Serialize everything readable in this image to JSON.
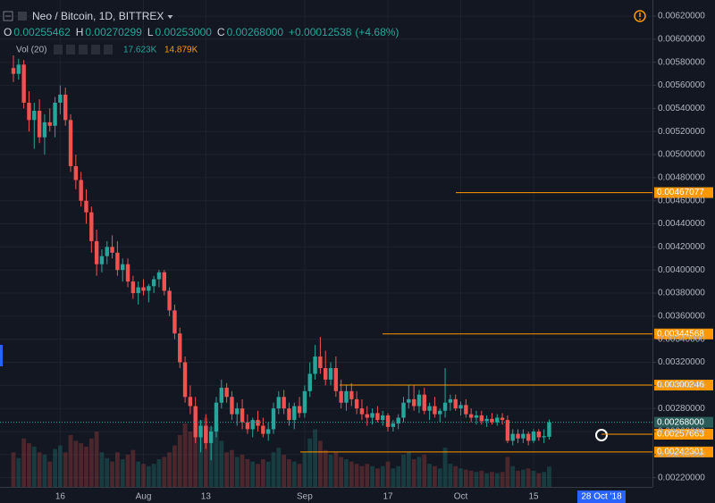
{
  "header": {
    "symbol": "Neo / Bitcoin, 1D, BITTREX",
    "ohlc": [
      {
        "key": "O",
        "value": 0.00255462,
        "label": "0.00255462"
      },
      {
        "key": "H",
        "value": 0.00270299,
        "label": "0.00270299"
      },
      {
        "key": "L",
        "value": 0.00253,
        "label": "0.00253000"
      },
      {
        "key": "C",
        "value": 0.00268,
        "label": "0.00268000"
      }
    ],
    "change": {
      "value": 0.00012538,
      "label": "+0.00012538"
    },
    "change_pct": {
      "value": 4.68,
      "label": "(+4.68%)"
    },
    "volume_indicator": "Vol (20)",
    "volume_values": [
      17623,
      14879
    ],
    "volume_value_labels": [
      "17.623K",
      "14.879K"
    ]
  },
  "chart_data": {
    "type": "candlestick",
    "up_color": "#26a69a",
    "down_color": "#ef5350",
    "grid": true,
    "categories": [
      null,
      null,
      null,
      null,
      null,
      null,
      null,
      null,
      null,
      "16",
      null,
      null,
      null,
      null,
      null,
      null,
      null,
      null,
      null,
      null,
      null,
      null,
      null,
      null,
      null,
      "Aug",
      null,
      null,
      null,
      null,
      null,
      null,
      null,
      null,
      null,
      null,
      null,
      "13",
      null,
      null,
      null,
      null,
      null,
      null,
      null,
      null,
      null,
      null,
      null,
      null,
      null,
      null,
      null,
      null,
      null,
      null,
      "Sep",
      null,
      null,
      null,
      null,
      null,
      null,
      null,
      null,
      null,
      null,
      null,
      null,
      null,
      null,
      null,
      "17",
      null,
      null,
      null,
      null,
      null,
      null,
      null,
      null,
      null,
      null,
      null,
      null,
      null,
      "Oct",
      null,
      null,
      null,
      null,
      null,
      null,
      null,
      null,
      null,
      null,
      null,
      null,
      null,
      "15",
      null,
      null,
      null
    ],
    "ohlc": [
      [
        0.00575,
        0.00586,
        0.00563,
        0.0057
      ],
      [
        0.0057,
        0.00583,
        0.00565,
        0.00578
      ],
      [
        0.00578,
        0.00582,
        0.0054,
        0.00545
      ],
      [
        0.00545,
        0.00555,
        0.0052,
        0.0053
      ],
      [
        0.0053,
        0.00545,
        0.00505,
        0.00538
      ],
      [
        0.00538,
        0.00548,
        0.0051,
        0.00515
      ],
      [
        0.00515,
        0.00535,
        0.005,
        0.00528
      ],
      [
        0.00528,
        0.0054,
        0.0052,
        0.00525
      ],
      [
        0.00525,
        0.0055,
        0.00515,
        0.00545
      ],
      [
        0.00545,
        0.0056,
        0.00535,
        0.00552
      ],
      [
        0.00552,
        0.00558,
        0.00525,
        0.0053
      ],
      [
        0.0053,
        0.00535,
        0.00485,
        0.0049
      ],
      [
        0.0049,
        0.005,
        0.0047,
        0.00478
      ],
      [
        0.00478,
        0.00485,
        0.00455,
        0.0046
      ],
      [
        0.0046,
        0.0047,
        0.0044,
        0.0045
      ],
      [
        0.0045,
        0.00455,
        0.00415,
        0.00425
      ],
      [
        0.00425,
        0.00435,
        0.00395,
        0.00405
      ],
      [
        0.00405,
        0.00418,
        0.00398,
        0.00412
      ],
      [
        0.00412,
        0.00425,
        0.00405,
        0.0042
      ],
      [
        0.0042,
        0.0043,
        0.0041,
        0.00415
      ],
      [
        0.00415,
        0.00425,
        0.00395,
        0.004
      ],
      [
        0.004,
        0.0041,
        0.0039,
        0.00405
      ],
      [
        0.00405,
        0.0041,
        0.00385,
        0.0039
      ],
      [
        0.0039,
        0.00395,
        0.00375,
        0.0038
      ],
      [
        0.0038,
        0.0039,
        0.0037,
        0.00385
      ],
      [
        0.00385,
        0.00392,
        0.00378,
        0.00382
      ],
      [
        0.00382,
        0.00388,
        0.00372,
        0.00386
      ],
      [
        0.00386,
        0.00395,
        0.0038,
        0.00392
      ],
      [
        0.00392,
        0.004,
        0.00385,
        0.00398
      ],
      [
        0.00398,
        0.004,
        0.00378,
        0.00382
      ],
      [
        0.00382,
        0.00385,
        0.0036,
        0.00365
      ],
      [
        0.00365,
        0.0037,
        0.0034,
        0.00345
      ],
      [
        0.00345,
        0.0035,
        0.00315,
        0.0032
      ],
      [
        0.0032,
        0.00325,
        0.00285,
        0.0029
      ],
      [
        0.0029,
        0.003,
        0.00275,
        0.00282
      ],
      [
        0.00282,
        0.0029,
        0.0025,
        0.00255
      ],
      [
        0.00255,
        0.0027,
        0.00242,
        0.00265
      ],
      [
        0.00265,
        0.00275,
        0.00245,
        0.0025
      ],
      [
        0.0025,
        0.00265,
        0.00235,
        0.0026
      ],
      [
        0.0026,
        0.0029,
        0.00255,
        0.00285
      ],
      [
        0.00285,
        0.00305,
        0.0028,
        0.00298
      ],
      [
        0.00298,
        0.00302,
        0.00285,
        0.0029
      ],
      [
        0.0029,
        0.00295,
        0.0027,
        0.00275
      ],
      [
        0.00275,
        0.00285,
        0.00265,
        0.0028
      ],
      [
        0.0028,
        0.00288,
        0.00262,
        0.00268
      ],
      [
        0.00268,
        0.00275,
        0.00258,
        0.00262
      ],
      [
        0.00262,
        0.00272,
        0.00255,
        0.0027
      ],
      [
        0.0027,
        0.00278,
        0.0026,
        0.00265
      ],
      [
        0.00265,
        0.00272,
        0.00255,
        0.00258
      ],
      [
        0.00258,
        0.00268,
        0.00252,
        0.00262
      ],
      [
        0.00262,
        0.00285,
        0.00258,
        0.0028
      ],
      [
        0.0028,
        0.00295,
        0.00275,
        0.0029
      ],
      [
        0.0029,
        0.00296,
        0.00275,
        0.0028
      ],
      [
        0.0028,
        0.00285,
        0.00265,
        0.0027
      ],
      [
        0.0027,
        0.00285,
        0.00262,
        0.00282
      ],
      [
        0.00282,
        0.0029,
        0.00272,
        0.00276
      ],
      [
        0.00276,
        0.003,
        0.00272,
        0.00295
      ],
      [
        0.00295,
        0.0032,
        0.0029,
        0.0031
      ],
      [
        0.0031,
        0.00335,
        0.00305,
        0.00325
      ],
      [
        0.00325,
        0.00342,
        0.0031,
        0.00315
      ],
      [
        0.00315,
        0.0033,
        0.003,
        0.00305
      ],
      [
        0.00305,
        0.0032,
        0.003,
        0.00315
      ],
      [
        0.00315,
        0.00325,
        0.0029,
        0.00295
      ],
      [
        0.00295,
        0.00305,
        0.0028,
        0.00285
      ],
      [
        0.00285,
        0.003,
        0.00278,
        0.00295
      ],
      [
        0.00295,
        0.00302,
        0.00282,
        0.00288
      ],
      [
        0.00288,
        0.00295,
        0.00275,
        0.0028
      ],
      [
        0.0028,
        0.00288,
        0.0027,
        0.00275
      ],
      [
        0.00275,
        0.00282,
        0.00265,
        0.00272
      ],
      [
        0.00272,
        0.0028,
        0.00266,
        0.00276
      ],
      [
        0.00276,
        0.00282,
        0.00268,
        0.0027
      ],
      [
        0.0027,
        0.00278,
        0.00265,
        0.00274
      ],
      [
        0.00274,
        0.00276,
        0.0026,
        0.00264
      ],
      [
        0.00264,
        0.0027,
        0.0026,
        0.00267
      ],
      [
        0.00267,
        0.00275,
        0.00262,
        0.00272
      ],
      [
        0.00272,
        0.0029,
        0.00268,
        0.00285
      ],
      [
        0.00285,
        0.003,
        0.0028,
        0.00288
      ],
      [
        0.00288,
        0.003,
        0.00278,
        0.00282
      ],
      [
        0.00282,
        0.00296,
        0.00276,
        0.00292
      ],
      [
        0.00292,
        0.00298,
        0.00275,
        0.00278
      ],
      [
        0.00278,
        0.00285,
        0.0027,
        0.00282
      ],
      [
        0.00282,
        0.0029,
        0.00272,
        0.00275
      ],
      [
        0.00275,
        0.0028,
        0.00268,
        0.00278
      ],
      [
        0.00278,
        0.00315,
        0.00272,
        0.00285
      ],
      [
        0.00285,
        0.00292,
        0.00278,
        0.00288
      ],
      [
        0.00288,
        0.00292,
        0.00278,
        0.0028
      ],
      [
        0.0028,
        0.00286,
        0.00274,
        0.00283
      ],
      [
        0.00283,
        0.00288,
        0.00272,
        0.00275
      ],
      [
        0.00275,
        0.0028,
        0.00268,
        0.00272
      ],
      [
        0.00272,
        0.00278,
        0.00266,
        0.00274
      ],
      [
        0.00274,
        0.00278,
        0.00266,
        0.00269
      ],
      [
        0.00269,
        0.00274,
        0.00264,
        0.00271
      ],
      [
        0.00271,
        0.00276,
        0.00266,
        0.00268
      ],
      [
        0.00268,
        0.00275,
        0.00265,
        0.00272
      ],
      [
        0.00272,
        0.00276,
        0.00266,
        0.0027
      ],
      [
        0.0027,
        0.00274,
        0.0025,
        0.00252
      ],
      [
        0.00252,
        0.00262,
        0.00248,
        0.00258
      ],
      [
        0.00258,
        0.00262,
        0.0025,
        0.00254
      ],
      [
        0.00254,
        0.00262,
        0.0025,
        0.00258
      ],
      [
        0.00258,
        0.0026,
        0.00248,
        0.00252
      ],
      [
        0.00252,
        0.00262,
        0.0025,
        0.0026
      ],
      [
        0.0026,
        0.00262,
        0.00252,
        0.00255
      ],
      [
        0.00255,
        0.00262,
        0.0025,
        0.00256
      ],
      [
        0.00255462,
        0.00270299,
        0.00253,
        0.00268
      ]
    ],
    "volume": [
      30000,
      25000,
      42000,
      38000,
      35000,
      30000,
      28000,
      22000,
      33000,
      36000,
      30000,
      45000,
      40000,
      38000,
      35000,
      42000,
      48000,
      30000,
      25000,
      22000,
      30000,
      24000,
      28000,
      32000,
      22000,
      20000,
      18000,
      20000,
      24000,
      26000,
      30000,
      36000,
      45000,
      55000,
      48000,
      62000,
      58000,
      60000,
      52000,
      55000,
      40000,
      30000,
      32000,
      26000,
      28000,
      24000,
      22000,
      20000,
      24000,
      22000,
      30000,
      34000,
      28000,
      24000,
      22000,
      20000,
      30000,
      42000,
      50000,
      40000,
      32000,
      28000,
      30000,
      26000,
      24000,
      22000,
      20000,
      18000,
      20000,
      18000,
      16000,
      18000,
      22000,
      16000,
      18000,
      28000,
      30000,
      24000,
      26000,
      28000,
      20000,
      18000,
      16000,
      34000,
      20000,
      18000,
      16000,
      15000,
      14000,
      13000,
      14000,
      12000,
      13000,
      12000,
      13000,
      26000,
      18000,
      14000,
      15000,
      16000,
      14000,
      12000,
      13000,
      17623
    ],
    "ylim": [
      0.00212,
      0.00634
    ],
    "yticks": [
      {
        "value": 0.0022,
        "label": "0.00220000"
      },
      {
        "value": 0.0024,
        "label": "0.00240000"
      },
      {
        "value": 0.0026,
        "label": "0.00260000"
      },
      {
        "value": 0.0028,
        "label": "0.00280000"
      },
      {
        "value": 0.003,
        "label": "0.00300000"
      },
      {
        "value": 0.0032,
        "label": "0.00320000"
      },
      {
        "value": 0.0034,
        "label": "0.00340000"
      },
      {
        "value": 0.0036,
        "label": "0.00360000"
      },
      {
        "value": 0.0038,
        "label": "0.00380000"
      },
      {
        "value": 0.004,
        "label": "0.00400000"
      },
      {
        "value": 0.0042,
        "label": "0.00420000"
      },
      {
        "value": 0.0044,
        "label": "0.00440000"
      },
      {
        "value": 0.0046,
        "label": "0.00460000"
      },
      {
        "value": 0.0048,
        "label": "0.00480000"
      },
      {
        "value": 0.005,
        "label": "0.00500000"
      },
      {
        "value": 0.0052,
        "label": "0.00520000"
      },
      {
        "value": 0.0054,
        "label": "0.00540000"
      },
      {
        "value": 0.0056,
        "label": "0.00560000"
      },
      {
        "value": 0.0058,
        "label": "0.00580000"
      },
      {
        "value": 0.006,
        "label": "0.00600000"
      },
      {
        "value": 0.0062,
        "label": "0.00620000"
      }
    ],
    "levels": [
      {
        "value": 0.00467077,
        "label": "0.00467077"
      },
      {
        "value": 0.00344568,
        "label": "0.00344568"
      },
      {
        "value": 0.00300246,
        "label": "0.00300246"
      },
      {
        "value": 0.00257663,
        "label": "0.00257663"
      },
      {
        "value": 0.00242301,
        "label": "0.00242301"
      }
    ],
    "level_color": "#ff9800",
    "last_price": {
      "value": 0.00268,
      "label": "0.00268000"
    },
    "crosshair_label": "28 Oct '18"
  }
}
